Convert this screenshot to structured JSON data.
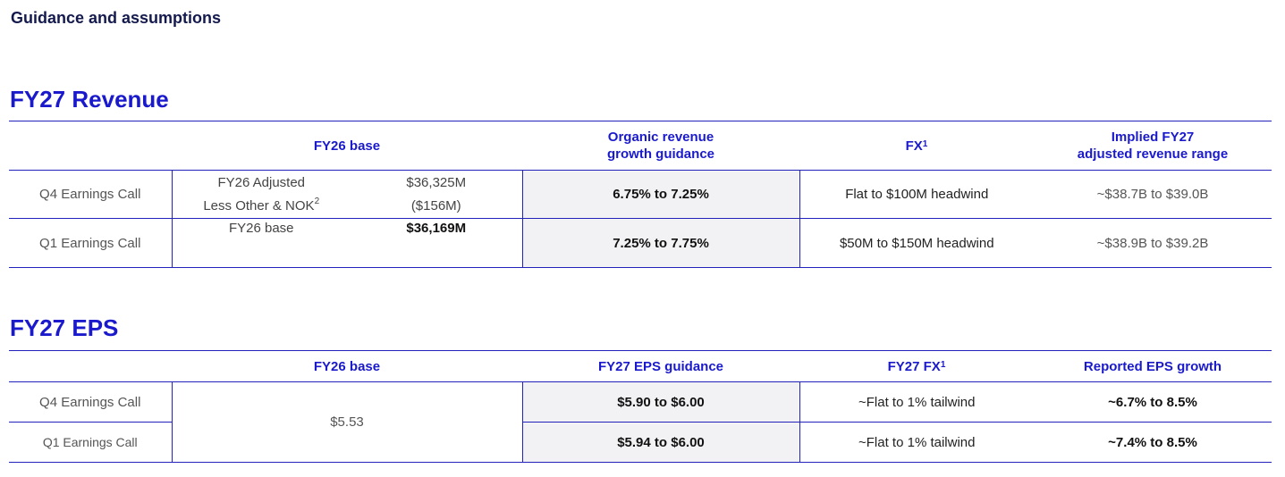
{
  "page_title": "Guidance and assumptions",
  "revenue": {
    "title": "FY27 Revenue",
    "headers": {
      "base": "FY26 base",
      "organic_l1": "Organic revenue",
      "organic_l2": "growth guidance",
      "fx": "FX",
      "fx_sup": "1",
      "implied_l1": "Implied FY27",
      "implied_l2": "adjusted revenue range"
    },
    "rows": [
      {
        "label": "Q4 Earnings Call",
        "base_line1_label": "FY26 Adjusted",
        "base_line1_value": "$36,325M",
        "base_line2_label": "Less Other & NOK",
        "base_line2_sup": "2",
        "base_line2_value": "($156M)",
        "organic": "6.75% to 7.25%",
        "fx": "Flat to $100M headwind",
        "implied": "~$38.7B to $39.0B"
      },
      {
        "label": "Q1 Earnings Call",
        "base_line1_label": "FY26 base",
        "base_line1_value": "$36,169M",
        "organic": "7.25% to 7.75%",
        "fx": "$50M to $150M headwind",
        "implied": "~$38.9B to $39.2B"
      }
    ]
  },
  "eps": {
    "title": "FY27 EPS",
    "headers": {
      "base": "FY26 base",
      "guidance": "FY27 EPS guidance",
      "fx": "FY27 FX",
      "fx_sup": "1",
      "growth": "Reported EPS growth"
    },
    "base_value": "$5.53",
    "rows": [
      {
        "label": "Q4 Earnings Call",
        "guidance": "$5.90 to $6.00",
        "fx": "~Flat to 1% tailwind",
        "growth": "~6.7% to 8.5%"
      },
      {
        "label": "Q1 Earnings Call",
        "guidance": "$5.94 to $6.00",
        "fx": "~Flat to 1% tailwind",
        "growth": "~7.4% to 8.5%"
      }
    ]
  }
}
